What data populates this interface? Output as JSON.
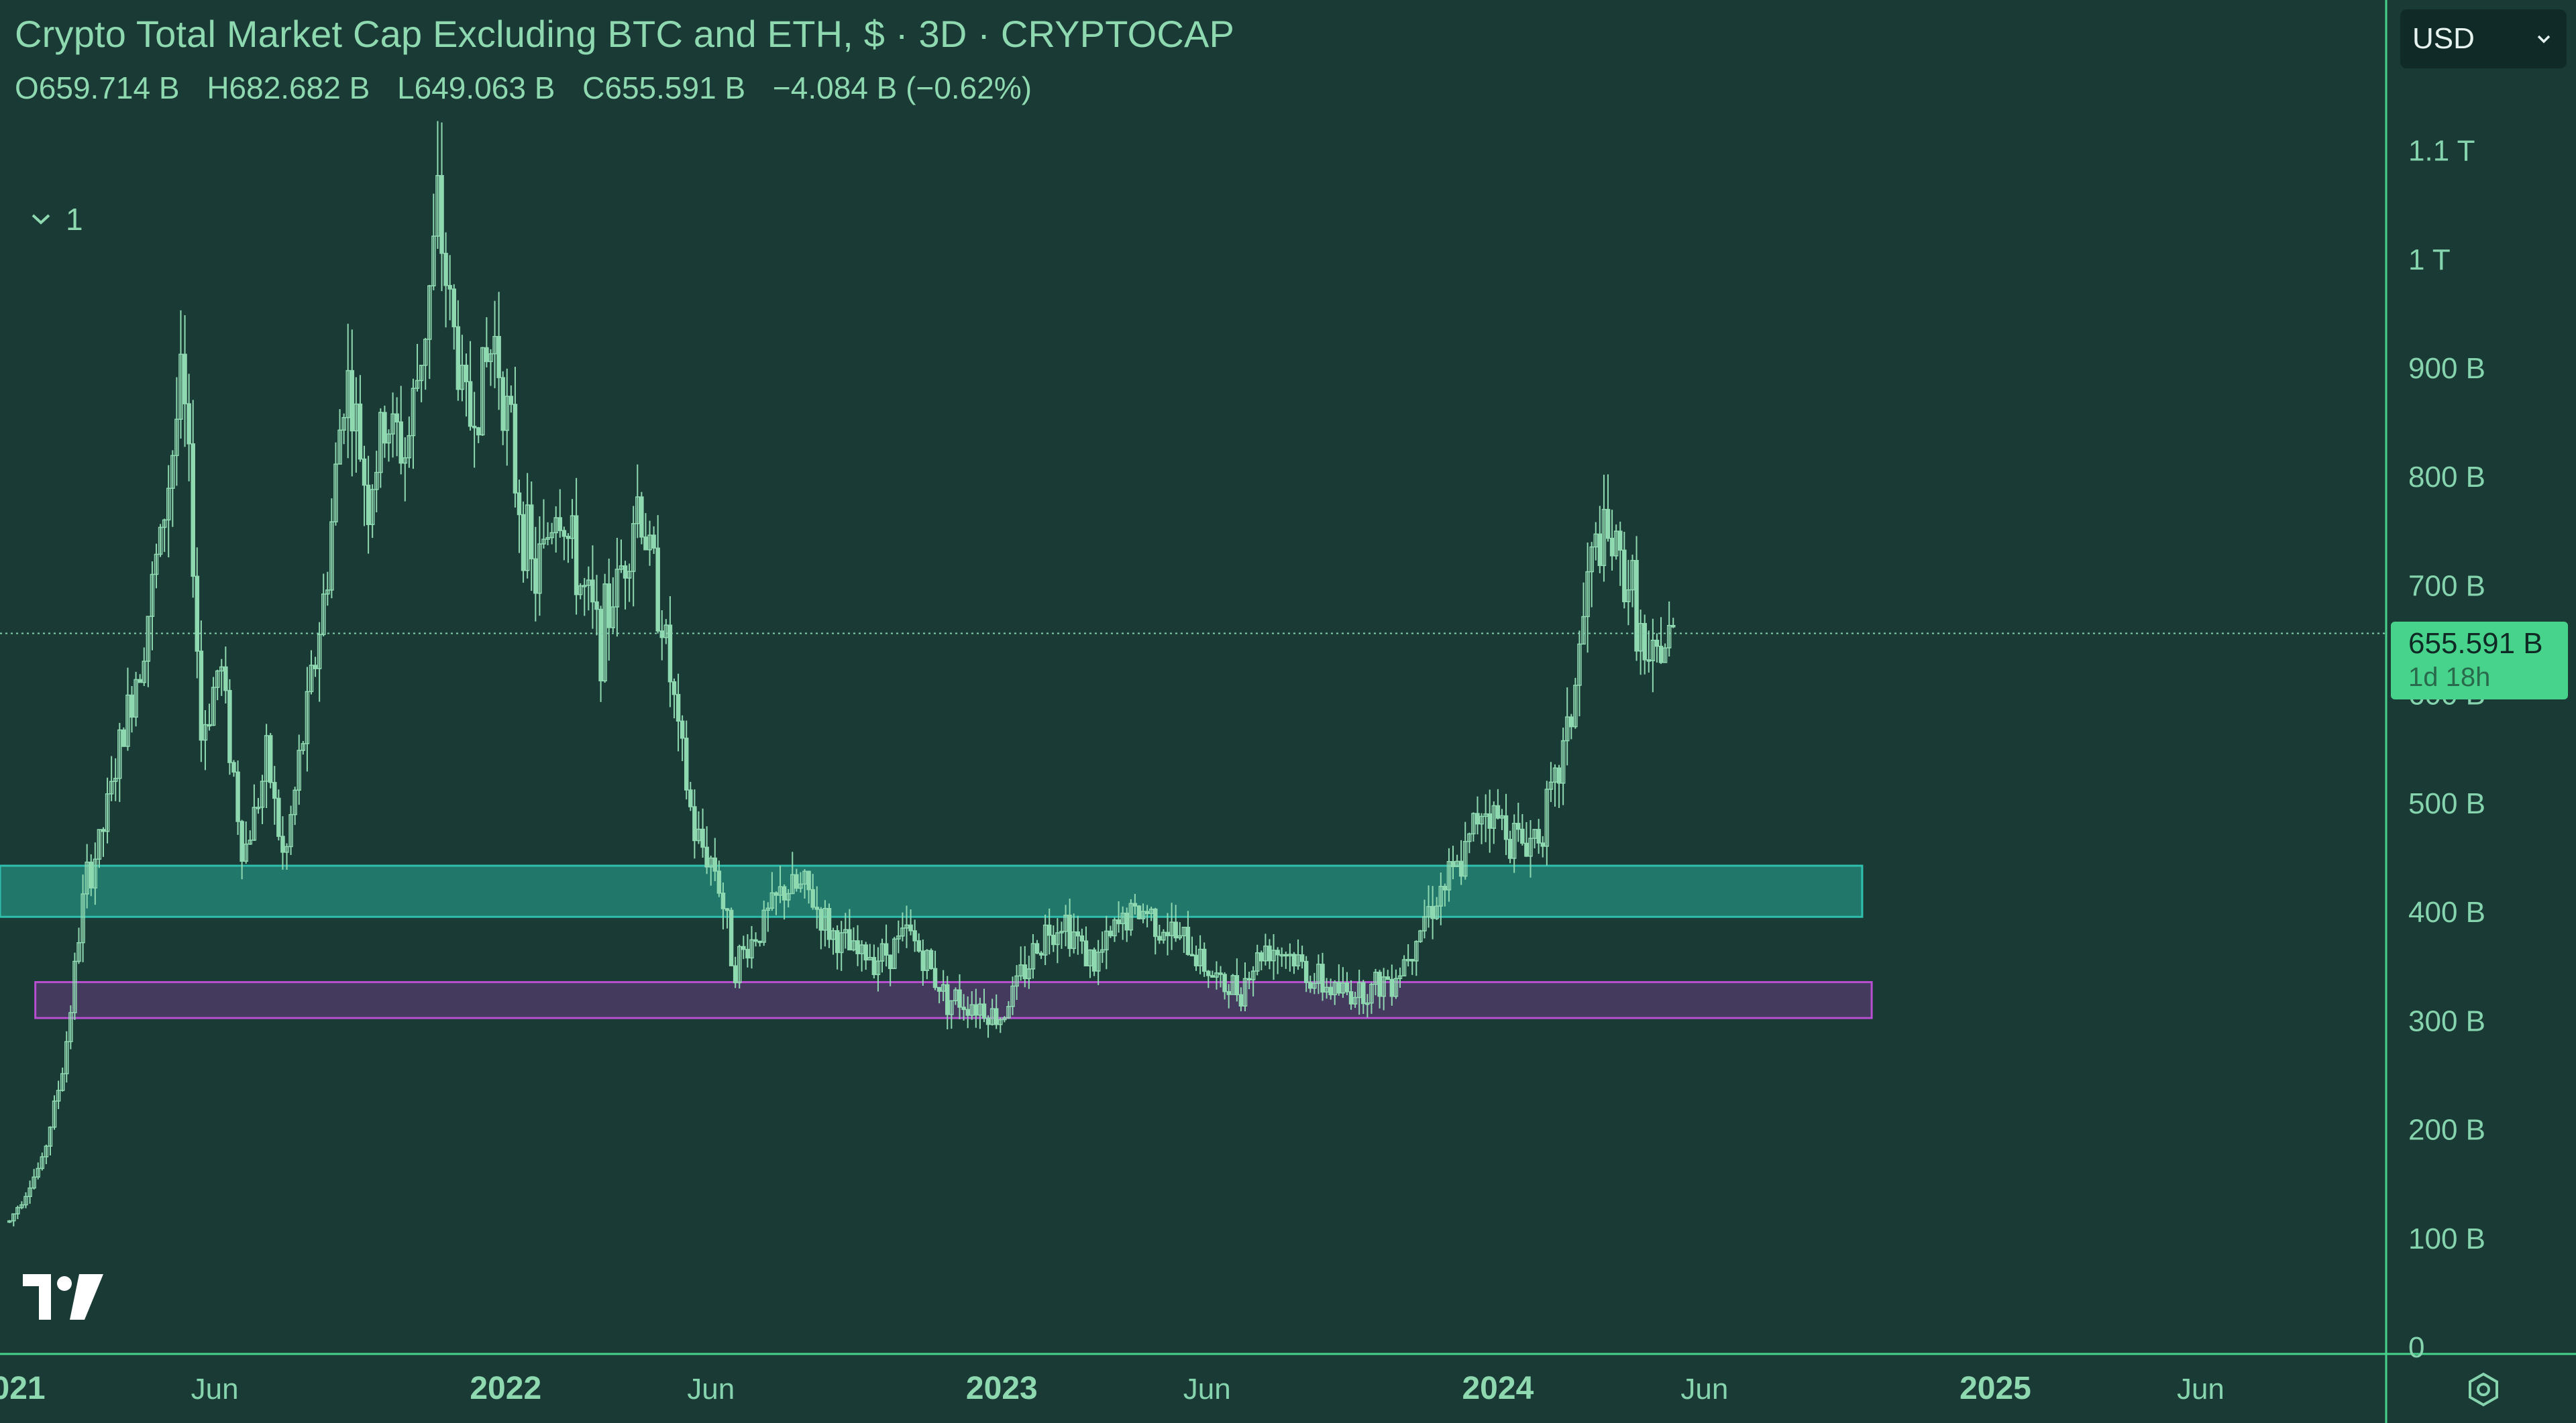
{
  "header": {
    "title": "Crypto Total Market Cap Excluding BTC and ETH, $ · 3D · CRYPTOCAP",
    "ohlc": {
      "open": "O659.714 B",
      "high": "H682.682 B",
      "low": "L649.063 B",
      "close": "C655.591 B",
      "change": "−4.084 B (−0.62%)"
    },
    "collapse_label": "1"
  },
  "toolbar": {
    "currency": "USD"
  },
  "price_tag": {
    "price": "655.591 B",
    "countdown": "1d 18h"
  },
  "colors": {
    "background": "#1a3a36",
    "candles": "#8fd9b1",
    "axis": "#48d38c",
    "zone_support": "#2fbfae",
    "zone_demand": "#b84fd0",
    "price_tag": "#48d38c"
  },
  "icons": {
    "logo": "tradingview-logo",
    "settings": "gear-icon",
    "collapse": "chevron-down-icon",
    "dropdown": "chevron-down-icon"
  },
  "chart_data": {
    "type": "candlestick",
    "symbol": "CRYPTOCAP",
    "interval": "3D",
    "x_range": [
      "2020-12-25",
      "2025-10-15"
    ],
    "y_range": [
      0,
      1170
    ],
    "y_unit": "B USD",
    "y_ticks": [
      {
        "value": 0,
        "label": "0"
      },
      {
        "value": 100,
        "label": "100 B"
      },
      {
        "value": 200,
        "label": "200 B"
      },
      {
        "value": 300,
        "label": "300 B"
      },
      {
        "value": 400,
        "label": "400 B"
      },
      {
        "value": 500,
        "label": "500 B"
      },
      {
        "value": 600,
        "label": "600 B"
      },
      {
        "value": 700,
        "label": "700 B"
      },
      {
        "value": 800,
        "label": "800 B"
      },
      {
        "value": 900,
        "label": "900 B"
      },
      {
        "value": 1000,
        "label": "1 T"
      },
      {
        "value": 1100,
        "label": "1.1 T"
      }
    ],
    "x_ticks": [
      {
        "date": "2021-01-01",
        "label": "2021",
        "major": true
      },
      {
        "date": "2021-06-01",
        "label": "Jun",
        "major": false
      },
      {
        "date": "2022-01-01",
        "label": "2022",
        "major": true
      },
      {
        "date": "2022-06-01",
        "label": "Jun",
        "major": false
      },
      {
        "date": "2023-01-01",
        "label": "2023",
        "major": true
      },
      {
        "date": "2023-06-01",
        "label": "Jun",
        "major": false
      },
      {
        "date": "2024-01-01",
        "label": "2024",
        "major": true
      },
      {
        "date": "2024-06-01",
        "label": "Jun",
        "major": false
      },
      {
        "date": "2025-01-01",
        "label": "2025",
        "major": true
      },
      {
        "date": "2025-06-01",
        "label": "Jun",
        "major": false
      }
    ],
    "current_price": 655.591,
    "zones": [
      {
        "id": "support-zone",
        "from": "2020-12-25",
        "to": "2024-09-25",
        "low": 395,
        "high": 442,
        "color": "#2fbfae"
      },
      {
        "id": "demand-zone",
        "from": "2021-01-20",
        "to": "2024-10-02",
        "low": 302,
        "high": 335,
        "color": "#b84fd0"
      }
    ],
    "close_path": [
      [
        "2021-01-01",
        115
      ],
      [
        "2021-01-25",
        170
      ],
      [
        "2021-02-10",
        260
      ],
      [
        "2021-02-25",
        420
      ],
      [
        "2021-03-10",
        470
      ],
      [
        "2021-03-25",
        560
      ],
      [
        "2021-04-08",
        640
      ],
      [
        "2021-04-22",
        740
      ],
      [
        "2021-05-08",
        890
      ],
      [
        "2021-05-15",
        760
      ],
      [
        "2021-05-22",
        560
      ],
      [
        "2021-06-05",
        630
      ],
      [
        "2021-06-22",
        450
      ],
      [
        "2021-07-10",
        540
      ],
      [
        "2021-07-22",
        440
      ],
      [
        "2021-08-05",
        560
      ],
      [
        "2021-08-22",
        700
      ],
      [
        "2021-09-05",
        900
      ],
      [
        "2021-09-22",
        780
      ],
      [
        "2021-10-05",
        850
      ],
      [
        "2021-10-20",
        820
      ],
      [
        "2021-11-05",
        960
      ],
      [
        "2021-11-12",
        1040
      ],
      [
        "2021-11-25",
        920
      ],
      [
        "2021-12-05",
        850
      ],
      [
        "2021-12-25",
        930
      ],
      [
        "2022-01-08",
        800
      ],
      [
        "2022-01-22",
        700
      ],
      [
        "2022-02-08",
        780
      ],
      [
        "2022-02-25",
        700
      ],
      [
        "2022-03-12",
        650
      ],
      [
        "2022-03-28",
        720
      ],
      [
        "2022-04-08",
        780
      ],
      [
        "2022-04-25",
        680
      ],
      [
        "2022-05-08",
        560
      ],
      [
        "2022-05-20",
        470
      ],
      [
        "2022-06-05",
        440
      ],
      [
        "2022-06-18",
        350
      ],
      [
        "2022-07-05",
        380
      ],
      [
        "2022-07-25",
        420
      ],
      [
        "2022-08-10",
        420
      ],
      [
        "2022-08-28",
        380
      ],
      [
        "2022-09-15",
        360
      ],
      [
        "2022-10-05",
        360
      ],
      [
        "2022-10-25",
        380
      ],
      [
        "2022-11-08",
        350
      ],
      [
        "2022-11-22",
        320
      ],
      [
        "2022-12-15",
        315
      ],
      [
        "2022-12-30",
        300
      ],
      [
        "2023-01-15",
        340
      ],
      [
        "2023-02-01",
        380
      ],
      [
        "2023-02-15",
        395
      ],
      [
        "2023-03-10",
        350
      ],
      [
        "2023-04-01",
        395
      ],
      [
        "2023-04-18",
        400
      ],
      [
        "2023-05-05",
        380
      ],
      [
        "2023-05-25",
        360
      ],
      [
        "2023-06-12",
        330
      ],
      [
        "2023-06-25",
        330
      ],
      [
        "2023-07-15",
        370
      ],
      [
        "2023-08-01",
        360
      ],
      [
        "2023-08-20",
        335
      ],
      [
        "2023-09-10",
        325
      ],
      [
        "2023-10-01",
        330
      ],
      [
        "2023-10-20",
        345
      ],
      [
        "2023-11-05",
        390
      ],
      [
        "2023-11-20",
        420
      ],
      [
        "2023-12-05",
        440
      ],
      [
        "2023-12-20",
        500
      ],
      [
        "2024-01-05",
        480
      ],
      [
        "2024-01-22",
        460
      ],
      [
        "2024-02-10",
        500
      ],
      [
        "2024-02-25",
        590
      ],
      [
        "2024-03-08",
        710
      ],
      [
        "2024-03-15",
        740
      ],
      [
        "2024-03-28",
        730
      ],
      [
        "2024-04-10",
        690
      ],
      [
        "2024-04-20",
        610
      ],
      [
        "2024-05-01",
        640
      ],
      [
        "2024-05-10",
        655.6
      ]
    ]
  }
}
